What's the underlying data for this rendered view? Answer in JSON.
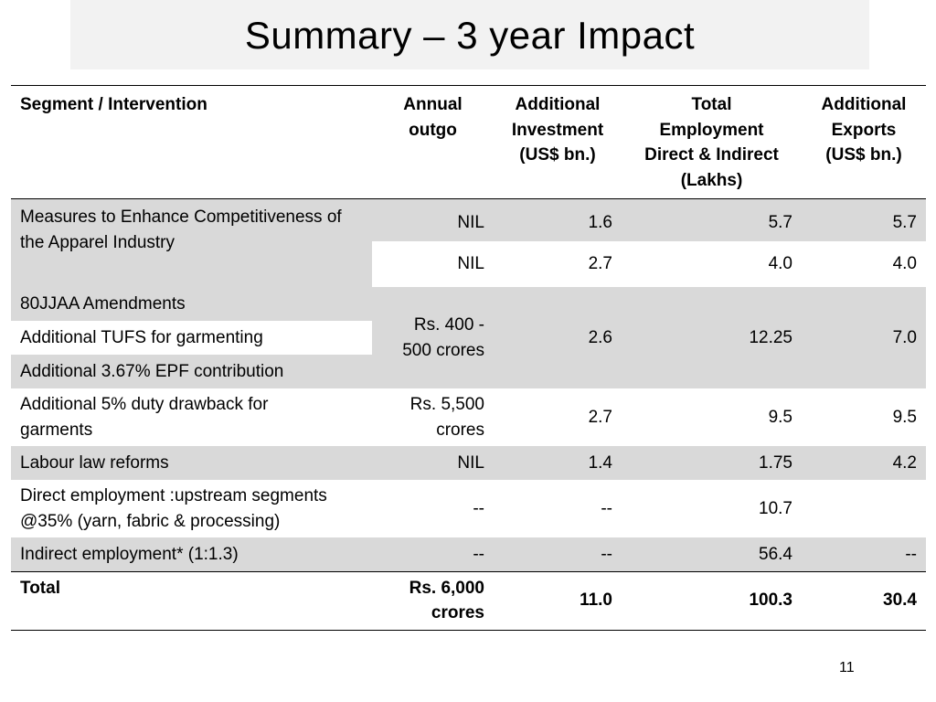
{
  "title": "Summary – 3 year Impact",
  "table": {
    "headers": {
      "segment": "Segment / Intervention",
      "outgo_1": "Annual",
      "outgo_2": "outgo",
      "inv_1": "Additional",
      "inv_2": "Investment",
      "inv_3": "(US$ bn.)",
      "emp_1": "Total",
      "emp_2": "Employment",
      "emp_3": "Direct & Indirect",
      "emp_4": "(Lakhs)",
      "exp_1": "Additional",
      "exp_2": "Exports",
      "exp_3": "(US$ bn.)"
    },
    "apparel": {
      "label": "Measures to Enhance Competitiveness of the Apparel Industry",
      "row1": {
        "outgo": "NIL",
        "investment": "1.6",
        "employment": "5.7",
        "exports": "5.7"
      },
      "row2": {
        "outgo": "NIL",
        "investment": "2.7",
        "employment": "4.0",
        "exports": "4.0"
      }
    },
    "group": {
      "item1": "80JJAA Amendments",
      "item2": "Additional TUFS for garmenting",
      "item3": "Additional 3.67% EPF contribution",
      "outgo_1": "Rs. 400 -",
      "outgo_2": "500 crores",
      "investment": "2.6",
      "employment": "12.25",
      "exports": "7.0"
    },
    "drawback": {
      "label_1": "Additional 5% duty drawback for",
      "label_2": "garments",
      "outgo_1": "Rs. 5,500",
      "outgo_2": "crores",
      "investment": "2.7",
      "employment": "9.5",
      "exports": "9.5"
    },
    "labour": {
      "label": "Labour law reforms",
      "outgo": "NIL",
      "investment": "1.4",
      "employment": "1.75",
      "exports": "4.2"
    },
    "direct": {
      "label_1": "Direct employment :upstream segments",
      "label_2": "@35% (yarn, fabric & processing)",
      "outgo": "--",
      "investment": "--",
      "employment": "10.7",
      "exports": ""
    },
    "indirect": {
      "label": "Indirect employment* (1:1.3)",
      "outgo": "--",
      "investment": "--",
      "employment": "56.4",
      "exports": "--"
    },
    "total": {
      "label": "Total",
      "outgo_1": "Rs. 6,000",
      "outgo_2": "crores",
      "investment": "11.0",
      "employment": "100.3",
      "exports": "30.4"
    }
  },
  "page_number": "11",
  "colors": {
    "shade": "#d9d9d9",
    "title_bg": "#f2f2f2",
    "rule": "#000000"
  }
}
